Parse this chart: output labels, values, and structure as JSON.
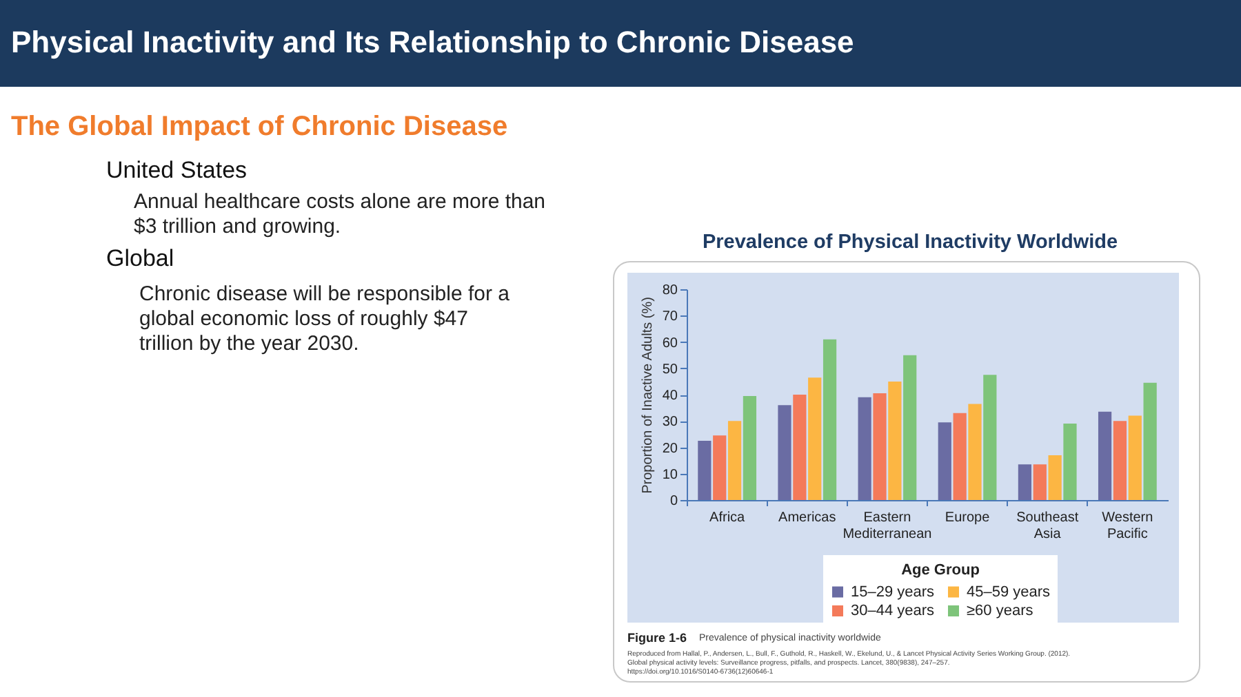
{
  "chart_data": {
    "type": "bar",
    "title": "Prevalence of Physical Inactivity Worldwide",
    "ylabel": "Proportion of Inactive Adults (%)",
    "legend_title": "Age Group",
    "categories": [
      "Africa",
      "Americas",
      "Eastern Mediterranean",
      "Europe",
      "Southeast Asia",
      "Western Pacific"
    ],
    "series": [
      {
        "name": "15–29 years",
        "color": "#6a6ca3",
        "values": [
          22.5,
          36,
          39,
          29.5,
          13.5,
          33.5
        ]
      },
      {
        "name": "30–44 years",
        "color": "#f47a5a",
        "values": [
          24.5,
          40,
          40.5,
          33,
          13.5,
          30
        ]
      },
      {
        "name": "45–59 years",
        "color": "#fcb643",
        "values": [
          30,
          46.5,
          45,
          36.5,
          17,
          32
        ]
      },
      {
        "name": "≥60 years",
        "color": "#7ec47a",
        "values": [
          39.5,
          61,
          55,
          47.5,
          29,
          44.5
        ]
      }
    ],
    "ylim": [
      0,
      80
    ],
    "yticks": [
      0,
      10,
      20,
      30,
      40,
      50,
      60,
      70,
      80
    ],
    "legend": "bottom",
    "annotations": [
      "Physical Inactivity and Its Relationship to Chronic Disease",
      "The Global Impact of Chronic Disease",
      "United States",
      "Annual healthcare costs alone are more than $3 trillion and growing.",
      "Global",
      "Chronic disease will be responsible for a global economic loss of roughly $47 trillion by the year 2030.",
      "Figure 1-6",
      "Prevalence of physical inactivity worldwide",
      "Reproduced from Hallal, P., Andersen, L., Bull, F., Guthold, R., Haskell, W., Ekelund, U., & Lancet Physical Activity Series Working Group. (2012). Global physical activity levels: Surveillance progress, pitfalls, and prospects. Lancet, 380(9838), 247–257. https://doi.org/10.1016/S0140-6736(12)60646-1"
    ]
  }
}
